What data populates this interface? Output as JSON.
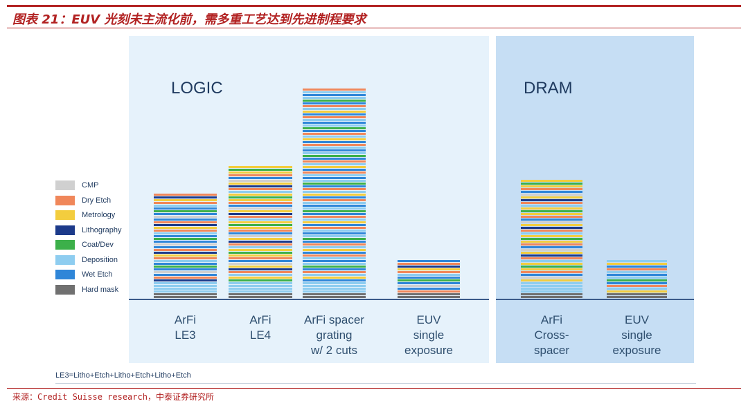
{
  "title": "图表 21：EUV 光刻未主流化前，需多重工艺达到先进制程要求",
  "source": "来源：Credit Suisse research，中泰证券研究所",
  "footnote": "LE3=Litho+Etch+Litho+Etch+Litho+Etch",
  "panels": {
    "logic": "LOGIC",
    "dram": "DRAM"
  },
  "legend": [
    {
      "name": "CMP",
      "color": "#d0d0d0"
    },
    {
      "name": "Dry Etch",
      "color": "#f0875a"
    },
    {
      "name": "Metrology",
      "color": "#f3cd3e"
    },
    {
      "name": "Lithography",
      "color": "#1c3a8a"
    },
    {
      "name": "Coat/Dev",
      "color": "#3cb04a"
    },
    {
      "name": "Deposition",
      "color": "#8ecdf0"
    },
    {
      "name": "Wet Etch",
      "color": "#2f86d8"
    },
    {
      "name": "Hard mask",
      "color": "#707070"
    }
  ],
  "chart_data": {
    "type": "bar",
    "stacked": true,
    "title": "",
    "xlabel": "",
    "ylabel": "",
    "categories": [
      "ArFi LE3",
      "ArFi LE4",
      "ArFi spacer grating w/ 2 cuts",
      "EUV single exposure",
      "ArFi Cross-spacer",
      "EUV single exposure"
    ],
    "groups": [
      "LOGIC",
      "LOGIC",
      "LOGIC",
      "LOGIC",
      "DRAM",
      "DRAM"
    ],
    "values": [
      38,
      48,
      76,
      14,
      43,
      14
    ],
    "bars": [
      {
        "label": "ArFi\nLE3",
        "group": "LOGIC",
        "steps": 38
      },
      {
        "label": "ArFi\nLE4",
        "group": "LOGIC",
        "steps": 48
      },
      {
        "label": "ArFi spacer\ngrating\nw/ 2 cuts",
        "group": "LOGIC",
        "steps": 76
      },
      {
        "label": "EUV\nsingle\nexposure",
        "group": "LOGIC",
        "steps": 14
      },
      {
        "label": "ArFi\nCross-\nspacer",
        "group": "DRAM",
        "steps": 43
      },
      {
        "label": "EUV\nsingle\nexposure",
        "group": "DRAM",
        "steps": 14
      }
    ],
    "legend_position": "left",
    "grid": false
  }
}
